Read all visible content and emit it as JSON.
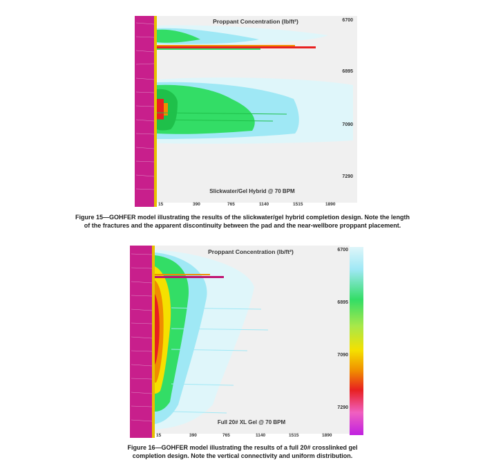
{
  "figures": [
    {
      "title": "Proppant Concentration (lb/ft²)",
      "depth_labels": [
        "6700",
        "6895",
        "7090",
        "7290"
      ],
      "x_ticks": [
        "15",
        "390",
        "765",
        "1140",
        "1515",
        "1890"
      ],
      "label": "Slickwater/Gel Hybrid @ 70 BPM",
      "caption_line1": "Figure 15—GOHFER model illustrating the results of the slickwater/gel hybrid completion design. Note the length",
      "caption_line2": "of the fractures and the apparent discontinuity between the pad and the near-wellbore proppant placement."
    },
    {
      "title": "Proppant Concentration (lb/ft²)",
      "depth_labels": [
        "6700",
        "6895",
        "7090",
        "7290"
      ],
      "x_ticks": [
        "15",
        "390",
        "765",
        "1140",
        "1515",
        "1890"
      ],
      "label": "Full 20# XL Gel @ 70 BPM",
      "caption_line1": "Figure 16—GOHFER model illustrating the results of a full 20# crosslinked gel",
      "caption_line2": "completion design. Note the vertical connectivity and uniform distribution."
    }
  ],
  "colors": {
    "log_track": "#c81f8c",
    "log_stripe": "#e8c000",
    "cyan": "#9fe8f5",
    "green": "#33dd66",
    "yellow": "#f5e000",
    "orange": "#f08c00",
    "red": "#e82020",
    "background": "#f0f0f0"
  }
}
